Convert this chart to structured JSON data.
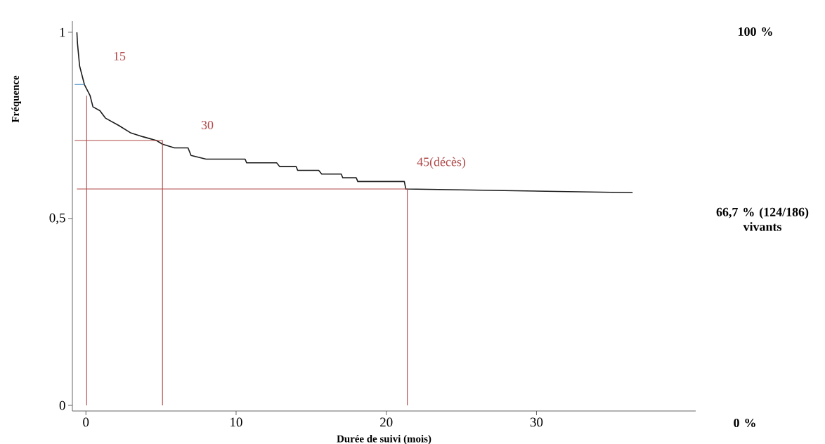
{
  "chart_data": {
    "type": "line",
    "xlabel": "Durée de suivi (mois)",
    "ylabel": "Fréquence",
    "xlim": [
      -0.9,
      40.6
    ],
    "ylim": [
      -0.015,
      1.03
    ],
    "xticks": [
      0,
      10,
      20,
      30
    ],
    "yticks": [
      0,
      {
        "value": 0.5,
        "label": "0,5"
      },
      1
    ],
    "grid": false,
    "series": [
      {
        "color": "#1a1a1a",
        "x": [
          -0.6,
          -0.56,
          -0.42,
          -0.1,
          0.28,
          0.47,
          0.93,
          1.3,
          2.2,
          3.0,
          3.8,
          4.7,
          5.1,
          5.9,
          6.8,
          7.0,
          8.0,
          10.6,
          10.7,
          11.7,
          11.8,
          12.7,
          12.9,
          14.0,
          14.1,
          15.5,
          15.7,
          17.0,
          17.1,
          18.0,
          18.1,
          21.2,
          21.3,
          36.4
        ],
        "values": [
          1.0,
          0.97,
          0.91,
          0.86,
          0.83,
          0.8,
          0.79,
          0.77,
          0.75,
          0.73,
          0.72,
          0.71,
          0.7,
          0.69,
          0.69,
          0.67,
          0.66,
          0.66,
          0.65,
          0.65,
          0.65,
          0.65,
          0.64,
          0.64,
          0.63,
          0.63,
          0.62,
          0.62,
          0.61,
          0.61,
          0.6,
          0.6,
          0.58,
          0.57
        ]
      },
      {
        "color": "#4a8fc4",
        "x": [
          -0.75,
          -0.1
        ],
        "values": [
          0.86,
          0.86
        ]
      },
      {
        "color": "#b04848",
        "x": [
          0.05,
          0.05
        ],
        "values": [
          0,
          0.83
        ]
      },
      {
        "color": "#b04848",
        "x": [
          -0.75,
          5.1,
          5.1
        ],
        "values": [
          0.71,
          0.71,
          0
        ]
      },
      {
        "color": "#b04848",
        "x": [
          -0.6,
          21.4,
          21.4
        ],
        "values": [
          0.58,
          0.58,
          0
        ]
      }
    ],
    "annotations": [
      "15",
      "30",
      "45(décès)",
      "100 %",
      "66,7 % (124/186) vivants",
      "0 %"
    ]
  }
}
